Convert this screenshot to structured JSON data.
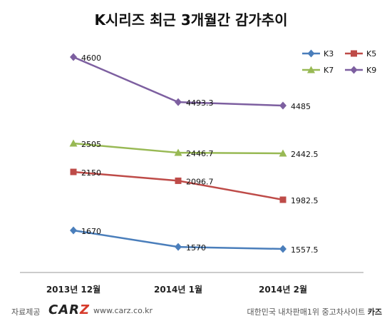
{
  "chart_data": {
    "type": "line",
    "title": "K시리즈 최근 3개월간 감가추이",
    "categories": [
      "2013년 12월",
      "2014년 1월",
      "2014년 2월"
    ],
    "series": [
      {
        "name": "K3",
        "values": [
          1670,
          1570,
          1557.5
        ],
        "labels": [
          "1670",
          "1570",
          "1557.5"
        ],
        "color": "#4a7ebb",
        "marker": "diamond"
      },
      {
        "name": "K5",
        "values": [
          2150,
          2096.7,
          1982.5
        ],
        "labels": [
          "2150",
          "2096.7",
          "1982.5"
        ],
        "color": "#be4b48",
        "marker": "square"
      },
      {
        "name": "K7",
        "values": [
          2505,
          2446.7,
          2442.5
        ],
        "labels": [
          "2505",
          "2446.7",
          "2442.5"
        ],
        "color": "#98b954",
        "marker": "triangle"
      },
      {
        "name": "K9",
        "values": [
          4600,
          4493.3,
          4485
        ],
        "labels": [
          "4600",
          "4493.3",
          "4485"
        ],
        "color": "#7d5fa0",
        "marker": "diamond"
      }
    ],
    "legend_position": "top-right",
    "grid": false
  },
  "footer": {
    "source_label": "자료제공",
    "brand_main": "CAR",
    "brand_accent": "Z",
    "url": "www.carz.co.kr",
    "tagline": "대한민국 내차판매1위 중고차사이트",
    "tagline_brand": "카즈"
  }
}
